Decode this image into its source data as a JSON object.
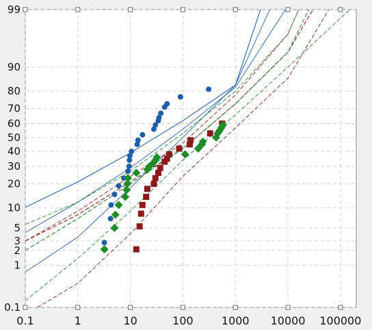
{
  "chart_data": {
    "type": "scatter",
    "x_scale": "log",
    "y_scale": "normal-probability",
    "xlim": [
      0.1,
      200000
    ],
    "ylim": [
      0.1,
      99
    ],
    "grid": true,
    "x_ticks": [
      0.1,
      1,
      10,
      100,
      1000,
      10000,
      100000
    ],
    "x_tick_labels": [
      "0.1",
      "1",
      "10",
      "100",
      "1000",
      "10000",
      "100000"
    ],
    "y_ticks": [
      0.1,
      1,
      2,
      3,
      5,
      10,
      20,
      30,
      40,
      50,
      60,
      70,
      80,
      90,
      99
    ],
    "y_tick_labels": [
      "0.1",
      "1",
      "2",
      "3",
      "5",
      "10",
      "20",
      "30",
      "40",
      "50",
      "60",
      "70",
      "80",
      "90",
      "99"
    ],
    "colors": {
      "blue": "#1f5fa8",
      "red": "#8b1a1a",
      "green": "#1f8c2a",
      "background": "#ffffff",
      "grid": "#cfcfcf"
    },
    "series": [
      {
        "color": "#1f5fa8",
        "marker": "circle",
        "points": [
          [
            3.2,
            2.8
          ],
          [
            4.2,
            7
          ],
          [
            4.3,
            11
          ],
          [
            5,
            15
          ],
          [
            6,
            19
          ],
          [
            7.5,
            23
          ],
          [
            9,
            27
          ],
          [
            9.5,
            30
          ],
          [
            9.6,
            34
          ],
          [
            9.8,
            37
          ],
          [
            10.5,
            40
          ],
          [
            13.5,
            45
          ],
          [
            14,
            48
          ],
          [
            17,
            52
          ],
          [
            28,
            56
          ],
          [
            30,
            59
          ],
          [
            34,
            62
          ],
          [
            35,
            64
          ],
          [
            38,
            67
          ],
          [
            45,
            71
          ],
          [
            50,
            73
          ],
          [
            90,
            77
          ],
          [
            310,
            81
          ]
        ],
        "fit": [
          [
            0.1,
            10.2
          ],
          [
            1,
            21
          ],
          [
            10,
            39
          ],
          [
            100,
            62
          ],
          [
            1000,
            83
          ],
          [
            3000,
            99
          ]
        ],
        "ci_upper": [
          [
            0.1,
            4.2
          ],
          [
            1,
            12
          ],
          [
            10,
            29
          ],
          [
            100,
            56
          ],
          [
            1000,
            82
          ],
          [
            9000,
            99
          ]
        ],
        "ci_lower": [
          [
            0.1,
            0.72
          ],
          [
            1,
            3.5
          ],
          [
            10,
            18
          ],
          [
            100,
            50
          ],
          [
            1000,
            83
          ],
          [
            4500,
            99
          ]
        ]
      },
      {
        "color": "#8b1a1a",
        "marker": "square",
        "points": [
          [
            13,
            2.1
          ],
          [
            15,
            5.3
          ],
          [
            16,
            8.3
          ],
          [
            17,
            11
          ],
          [
            20,
            14
          ],
          [
            21,
            17.5
          ],
          [
            28,
            20
          ],
          [
            30,
            23
          ],
          [
            34,
            26
          ],
          [
            37,
            29
          ],
          [
            45,
            33
          ],
          [
            50,
            35
          ],
          [
            55,
            38
          ],
          [
            85,
            42
          ],
          [
            135,
            45
          ],
          [
            140,
            48
          ],
          [
            330,
            53
          ],
          [
            560,
            60
          ]
        ],
        "fit": [
          [
            0.1,
            3
          ],
          [
            1,
            8
          ],
          [
            10,
            21
          ],
          [
            100,
            42
          ],
          [
            1000,
            73
          ],
          [
            10000,
            94
          ],
          [
            30000,
            99
          ]
        ],
        "ci_upper": [
          [
            0.1,
            3
          ],
          [
            1,
            9
          ],
          [
            10,
            24
          ],
          [
            100,
            46
          ],
          [
            1000,
            78
          ],
          [
            10000,
            97
          ],
          [
            16000,
            99
          ]
        ],
        "ci_lower": [
          [
            0.17,
            0.1
          ],
          [
            1,
            0.4
          ],
          [
            10,
            4
          ],
          [
            100,
            24
          ],
          [
            1000,
            57
          ],
          [
            10000,
            86
          ],
          [
            60000,
            99
          ]
        ]
      },
      {
        "color": "#1f8c2a",
        "marker": "diamond",
        "points": [
          [
            3.2,
            2.1
          ],
          [
            5,
            5
          ],
          [
            5.2,
            8
          ],
          [
            6,
            11
          ],
          [
            8,
            14
          ],
          [
            8.5,
            17
          ],
          [
            8.8,
            20
          ],
          [
            9,
            23
          ],
          [
            13,
            26
          ],
          [
            21,
            28
          ],
          [
            23,
            30
          ],
          [
            27,
            32
          ],
          [
            30,
            34
          ],
          [
            32,
            36
          ],
          [
            110,
            38
          ],
          [
            195,
            42
          ],
          [
            230,
            45
          ],
          [
            240,
            47
          ],
          [
            430,
            50
          ],
          [
            460,
            53
          ],
          [
            500,
            55
          ],
          [
            540,
            57
          ],
          [
            580,
            59
          ]
        ],
        "fit": [
          [
            0.1,
            2
          ],
          [
            1,
            7
          ],
          [
            10,
            20
          ],
          [
            100,
            42
          ],
          [
            1000,
            73
          ],
          [
            10000,
            94
          ],
          [
            25000,
            99
          ]
        ],
        "ci_upper": [
          [
            0.1,
            5.7
          ],
          [
            1,
            12
          ],
          [
            10,
            27
          ],
          [
            100,
            53
          ],
          [
            1000,
            80
          ],
          [
            10000,
            97
          ],
          [
            16000,
            99
          ]
        ],
        "ci_lower": [
          [
            0.1,
            0.15
          ],
          [
            1,
            1.4
          ],
          [
            10,
            9
          ],
          [
            100,
            34
          ],
          [
            1000,
            66
          ],
          [
            10000,
            90
          ],
          [
            150000,
            99
          ]
        ]
      }
    ]
  }
}
